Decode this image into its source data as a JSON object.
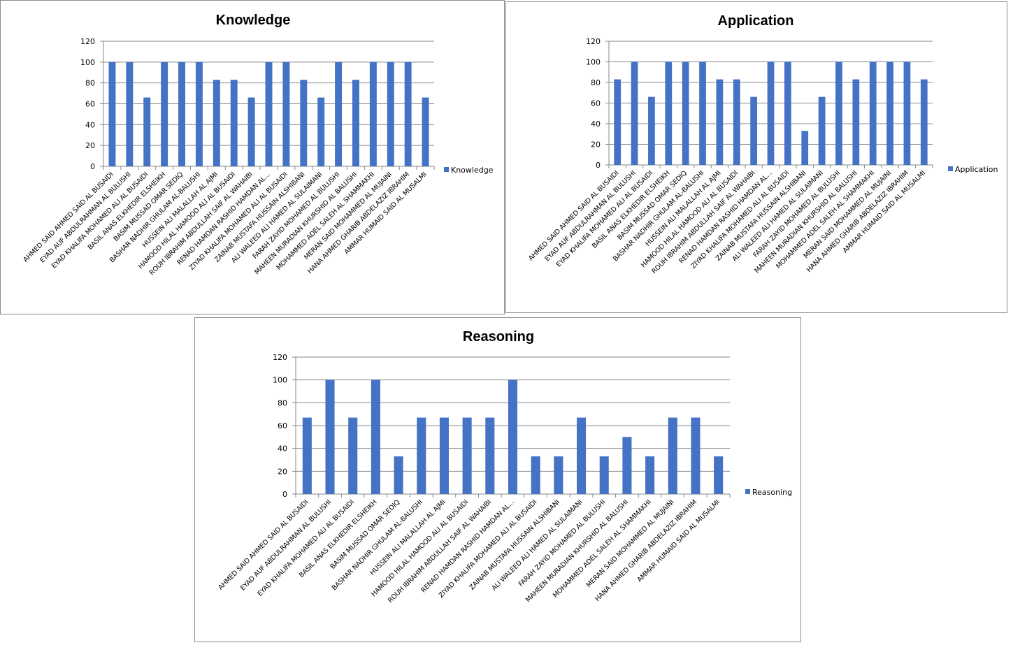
{
  "chart_data": [
    {
      "type": "bar",
      "title": "Knowledge",
      "xlabel": "",
      "ylabel": "",
      "ylim": [
        0,
        120
      ],
      "yticks": [
        0,
        20,
        40,
        60,
        80,
        100,
        120
      ],
      "grid": true,
      "legend": "right",
      "bar_color": "#4472c4",
      "categories": [
        "AHMED SAID AHMED  SAID AL BUSAIDI",
        "EYAD AUF ABDULRAHMAN AL BULUSHI",
        "EYAD KHALIFA MOHAMED ALI AL BUSAIDI",
        "BASIL ANAS ELKHEDIR ELSHEIKH",
        "BASIM MUSSAD OMAR SEDIQ",
        "BASHAR NADHIR GHULAM AL-BALUSHI",
        "HUSSEIN ALI MALALLAH AL AJMI",
        "HAMOOD HILAL HAMOOD ALI  AL BUSAIDI",
        "ROUH IBRAHIM ABDULLAH SAIF AL WAHAIBI",
        "RENAD HAMDAN RASHID HAMDAN AL...",
        "ZIYAD KHALIFA MOHAMED ALI AL BUSAIDI",
        "ZAINAB MUSTAFA HUSSAIN ALSHIBANI",
        "ALI WALEED ALI HAMED  AL SULAIMANI",
        "FARAH ZAYID MOHAMED AL BULUSHI",
        "MAHEEN MURADIAN KHURSHID  AL BALUSHI",
        "MOHAMMED ADEL SALEH AL SHAMMAKHI",
        "MERAN SAID MOHAMMED AL MUJAINI",
        "HANA AHMED GHARIB ABDELAZIZ IBRAHIM",
        "AMMAR HUMAID SAID AL MUSALMI"
      ],
      "series": [
        {
          "name": "Knowledge",
          "values": [
            100,
            100,
            66,
            100,
            100,
            100,
            83,
            83,
            66,
            100,
            100,
            83,
            66,
            100,
            83,
            100,
            100,
            100,
            66
          ]
        }
      ]
    },
    {
      "type": "bar",
      "title": "Application",
      "xlabel": "",
      "ylabel": "",
      "ylim": [
        0,
        120
      ],
      "yticks": [
        0,
        20,
        40,
        60,
        80,
        100,
        120
      ],
      "grid": true,
      "legend": "right",
      "bar_color": "#4472c4",
      "categories": [
        "AHMED SAID AHMED  SAID AL BUSAIDI",
        "EYAD AUF ABDULRAHMAN AL BULUSHI",
        "EYAD KHALIFA MOHAMED ALI AL BUSAIDI",
        "BASIL ANAS ELKHEDIR ELSHEIKH",
        "BASIM MUSSAD OMAR SEDIQ",
        "BASHAR NADHIR GHULAM AL-BALUSHI",
        "HUSSEIN ALI MALALLAH AL AJMI",
        "HAMOOD HILAL HAMOOD ALI  AL BUSAIDI",
        "ROUH IBRAHIM ABDULLAH SAIF AL WAHAIBI",
        "RENAD HAMDAN RASHID HAMDAN AL...",
        "ZIYAD KHALIFA MOHAMED ALI AL BUSAIDI",
        "ZAINAB MUSTAFA HUSSAIN ALSHIBANI",
        "ALI WALEED ALI HAMED  AL SULAIMANI",
        "FARAH ZAYID MOHAMED AL BULUSHI",
        "MAHEEN MURADIAN KHURSHID  AL BALUSHI",
        "MOHAMMED ADEL SALEH AL SHAMMAKHI",
        "MERAN SAID MOHAMMED AL MUJAINI",
        "HANA AHMED GHARIB ABDELAZIZ IBRAHIM",
        "AMMAR HUMAID SAID AL MUSALMI"
      ],
      "series": [
        {
          "name": "Application",
          "values": [
            83,
            100,
            66,
            100,
            100,
            100,
            83,
            83,
            66,
            100,
            100,
            33,
            66,
            100,
            83,
            100,
            100,
            100,
            83
          ]
        }
      ]
    },
    {
      "type": "bar",
      "title": "Reasoning",
      "xlabel": "",
      "ylabel": "",
      "ylim": [
        0,
        120
      ],
      "yticks": [
        0,
        20,
        40,
        60,
        80,
        100,
        120
      ],
      "grid": true,
      "legend": "right",
      "bar_color": "#4472c4",
      "categories": [
        "AHMED SAID AHMED  SAID AL BUSAIDI",
        "EYAD AUF ABDULRAHMAN AL BULUSHI",
        "EYAD KHALIFA MOHAMED ALI AL BUSAIDI",
        "BASIL ANAS ELKHEDIR ELSHEIKH",
        "BASIM MUSSAD OMAR SEDIQ",
        "BASHAR NADHIR GHULAM AL-BALUSHI",
        "HUSSEIN ALI MALALLAH AL AJMI",
        "HAMOOD HILAL HAMOOD ALI  AL BUSAIDI",
        "ROUH IBRAHIM ABDULLAH SAIF AL WAHAIBI",
        "RENAD HAMDAN RASHID HAMDAN AL...",
        "ZIYAD KHALIFA MOHAMED ALI AL BUSAIDI",
        "ZAINAB MUSTAFA HUSSAIN ALSHIBANI",
        "ALI WALEED ALI HAMED  AL SULAIMANI",
        "FARAH ZAYID MOHAMED AL BULUSHI",
        "MAHEEN MURADIAN KHURSHID  AL BALUSHI",
        "MOHAMMED ADEL SALEH AL SHAMMAKHI",
        "MERAN SAID MOHAMMED AL MUJAINI",
        "HANA AHMED GHARIB ABDELAZIZ IBRAHIM",
        "AMMAR HUMAID SAID AL MUSALMI"
      ],
      "series": [
        {
          "name": "Reasoning",
          "values": [
            67,
            100,
            67,
            100,
            33,
            67,
            67,
            67,
            67,
            100,
            33,
            33,
            67,
            33,
            50,
            33,
            67,
            67,
            33
          ]
        }
      ]
    }
  ]
}
